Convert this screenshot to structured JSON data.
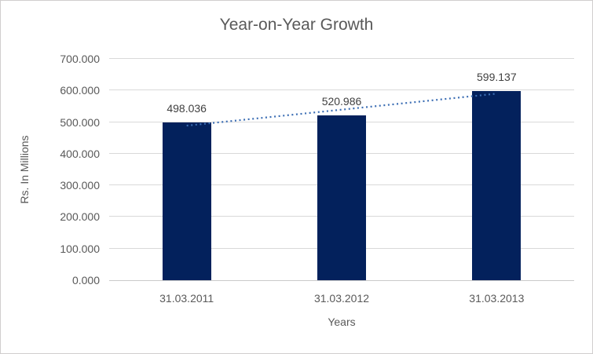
{
  "chart_data": {
    "type": "bar",
    "title": "Year-on-Year Growth",
    "xlabel": "Years",
    "ylabel": "Rs. In Millions",
    "categories": [
      "31.03.2011",
      "31.03.2012",
      "31.03.2013"
    ],
    "values": [
      498.036,
      520.986,
      599.137
    ],
    "data_labels": [
      "498.036",
      "520.986",
      "599.137"
    ],
    "ylim": [
      0,
      700
    ],
    "ytick_step": 100,
    "yticks": [
      0,
      100,
      200,
      300,
      400,
      500,
      600,
      700
    ],
    "ytick_labels": [
      "0.000",
      "100.000",
      "200.000",
      "300.000",
      "400.000",
      "500.000",
      "600.000",
      "700.000"
    ],
    "grid": true,
    "legend": "none",
    "trendline": {
      "kind": "linear",
      "style": "dotted"
    },
    "colors": {
      "bar": "#03215c",
      "trendline": "#3c6eb4",
      "gridline": "#d9d9d9",
      "axis_line": "#c9c9c9",
      "title_text": "#595959",
      "tick_text": "#595959",
      "data_label_text": "#404040",
      "frame_border": "#d0cece",
      "background": "#ffffff"
    }
  }
}
